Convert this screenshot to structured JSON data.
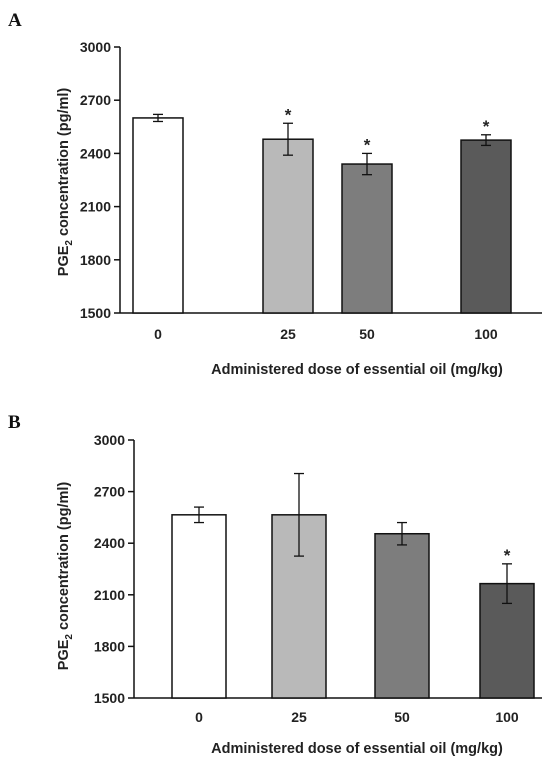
{
  "chart_data": [
    {
      "panel": "A",
      "type": "bar",
      "categories": [
        "0",
        "25",
        "50",
        "100"
      ],
      "values": [
        2600,
        2480,
        2340,
        2475
      ],
      "errors": [
        20,
        90,
        60,
        30
      ],
      "significant": [
        false,
        true,
        true,
        true
      ],
      "star_label": "*",
      "colors": [
        "#ffffff",
        "#b9b9b9",
        "#7d7d7d",
        "#5a5a5a"
      ],
      "ylim": [
        1500,
        3000
      ],
      "yticks": [
        "1500",
        "1800",
        "2100",
        "2400",
        "2700",
        "3000"
      ],
      "ylabel_main": "PGE",
      "ylabel_sub": "2",
      "ylabel_rest": " concentration (pg/ml)",
      "xlabel": "Administered dose of essential oil (mg/kg)"
    },
    {
      "panel": "B",
      "type": "bar",
      "categories": [
        "0",
        "25",
        "50",
        "100"
      ],
      "values": [
        2565,
        2565,
        2455,
        2165
      ],
      "errors": [
        45,
        240,
        65,
        115
      ],
      "significant": [
        false,
        false,
        false,
        true
      ],
      "star_label": "*",
      "colors": [
        "#ffffff",
        "#b9b9b9",
        "#7d7d7d",
        "#5a5a5a"
      ],
      "ylim": [
        1500,
        3000
      ],
      "yticks": [
        "1500",
        "1800",
        "2100",
        "2400",
        "2700",
        "3000"
      ],
      "ylabel_main": "PGE",
      "ylabel_sub": "2",
      "ylabel_rest": " concentration (pg/ml)",
      "xlabel": "Administered dose of essential oil (mg/kg)"
    }
  ]
}
